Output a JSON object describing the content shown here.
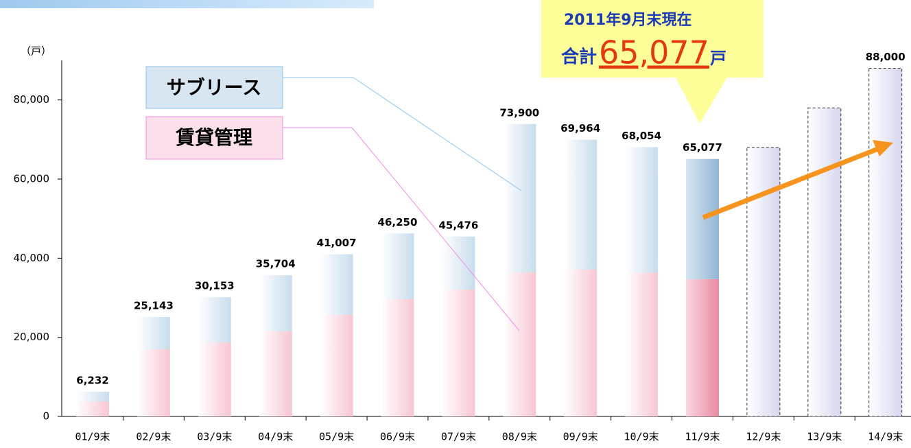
{
  "chart_data": {
    "type": "bar",
    "stacked": true,
    "y_label": "（戸）",
    "categories": [
      "01/9末",
      "02/9末",
      "03/9末",
      "04/9末",
      "05/9末",
      "06/9末",
      "07/9末",
      "08/9末",
      "09/9末",
      "10/9末",
      "11/9末",
      "12/9末",
      "13/9末",
      "14/9末"
    ],
    "series": [
      {
        "name": "賃貸管理",
        "color": "#f7c6d2",
        "values": [
          3800,
          17000,
          18700,
          21500,
          25700,
          29700,
          32100,
          36400,
          37100,
          36400,
          34700,
          null,
          null,
          null
        ]
      },
      {
        "name": "サブリース",
        "color": "#c8dcec",
        "values": [
          2432,
          8143,
          11453,
          14204,
          15307,
          16550,
          13376,
          37500,
          32864,
          31654,
          30377,
          null,
          null,
          null
        ]
      }
    ],
    "totals": {
      "values": [
        6232,
        25143,
        30153,
        35704,
        41007,
        46250,
        45476,
        73900,
        69964,
        68054,
        65077,
        null,
        null,
        null
      ],
      "value_labels": [
        "6,232",
        "25,143",
        "30,153",
        "35,704",
        "41,007",
        "46,250",
        "45,476",
        "73,900",
        "69,964",
        "68,054",
        "65,077",
        null,
        null,
        null
      ]
    },
    "forecast": {
      "color": "#d6d6ee",
      "values": [
        null,
        null,
        null,
        null,
        null,
        null,
        null,
        null,
        null,
        null,
        null,
        68000,
        78000,
        88000
      ],
      "value_labels": [
        null,
        null,
        null,
        null,
        null,
        null,
        null,
        null,
        null,
        null,
        null,
        null,
        null,
        "88,000"
      ]
    },
    "highlight_index": 10,
    "annotation": {
      "line1": "2011年9月末現在",
      "prefix": "合計",
      "number": "65,077",
      "suffix": "戸"
    },
    "ylim": [
      0,
      90000
    ],
    "yticks": [
      0,
      {
        "value": 20000,
        "label": "20,000"
      },
      {
        "value": 40000,
        "label": "40,000"
      },
      {
        "value": 60000,
        "label": "60,000"
      },
      {
        "value": 80000,
        "label": "80,000"
      }
    ]
  }
}
